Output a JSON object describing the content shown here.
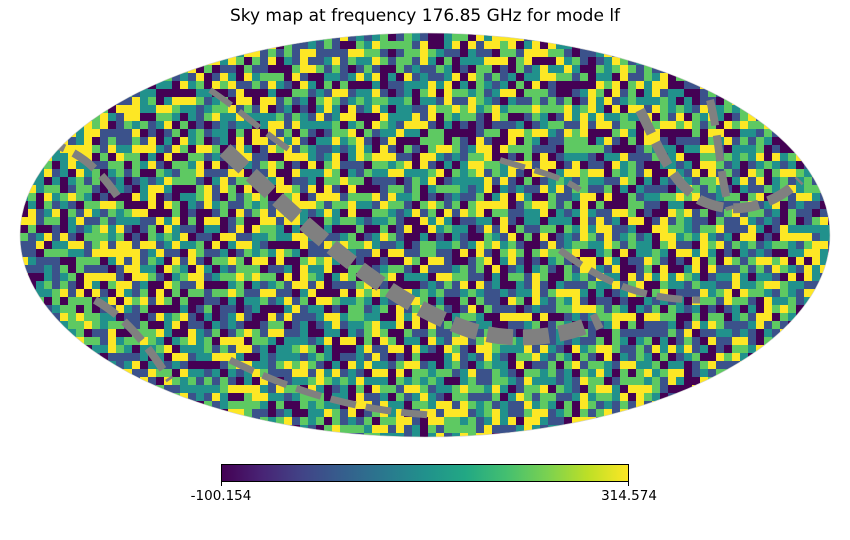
{
  "chart_data": {
    "type": "heatmap",
    "projection": "mollweide",
    "title": "Sky map at frequency 176.85 GHz for mode lf",
    "colormap": "viridis",
    "vmin": -100.154,
    "vmax": 314.574,
    "colorbar_labels": [
      "-100.154",
      "314.574"
    ],
    "colorbar_orientation": "horizontal",
    "masked_color": "#808080",
    "masked_feature": "gray masked pixel bands (galactic-plane shaped) across the map"
  }
}
